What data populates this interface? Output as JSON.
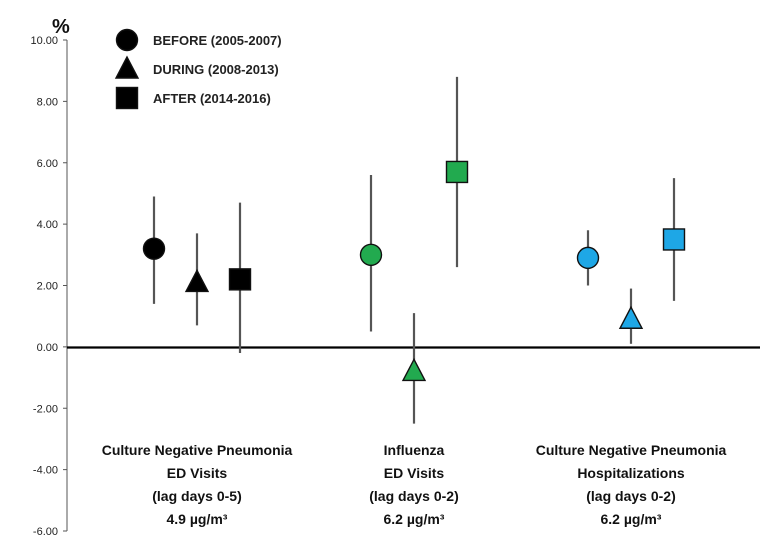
{
  "chart_data": {
    "type": "scatter",
    "title": "",
    "ylabel": "%",
    "xlabel": "",
    "ylim": [
      -6,
      10
    ],
    "yticks": [
      "10.00",
      "8.00",
      "6.00",
      "4.00",
      "2.00",
      "0.00",
      "-2.00",
      "-4.00",
      "-6.00"
    ],
    "yticks_values": [
      10,
      8,
      6,
      4,
      2,
      0,
      -2,
      -4,
      -6
    ],
    "legend": [
      {
        "name": "BEFORE (2005-2007)",
        "marker": "circle"
      },
      {
        "name": "DURING (2008-2013)",
        "marker": "triangle"
      },
      {
        "name": "AFTER (2014-2016)",
        "marker": "square"
      }
    ],
    "groups": [
      {
        "color": "#000000",
        "label_lines": [
          "Culture Negative Pneumonia",
          "ED Visits",
          "(lag days 0-5)",
          "4.9 µg/m³"
        ],
        "points": [
          {
            "period": "BEFORE (2005-2007)",
            "marker": "circle",
            "value": 3.2,
            "lower": 1.4,
            "upper": 4.9
          },
          {
            "period": "DURING (2008-2013)",
            "marker": "triangle",
            "value": 2.1,
            "lower": 0.7,
            "upper": 3.7
          },
          {
            "period": "AFTER (2014-2016)",
            "marker": "square",
            "value": 2.2,
            "lower": -0.2,
            "upper": 4.7
          }
        ]
      },
      {
        "color": "#22aa4f",
        "label_lines": [
          "Influenza",
          "ED Visits",
          "(lag days 0-2)",
          "6.2 µg/m³"
        ],
        "points": [
          {
            "period": "BEFORE (2005-2007)",
            "marker": "circle",
            "value": 3.0,
            "lower": 0.5,
            "upper": 5.6
          },
          {
            "period": "DURING (2008-2013)",
            "marker": "triangle",
            "value": -0.8,
            "lower": -2.5,
            "upper": 1.1
          },
          {
            "period": "AFTER (2014-2016)",
            "marker": "square",
            "value": 5.7,
            "lower": 2.6,
            "upper": 8.8
          }
        ]
      },
      {
        "color": "#1ea7e6",
        "label_lines": [
          "Culture Negative Pneumonia",
          "Hospitalizations",
          "(lag days 0-2)",
          "6.2 µg/m³"
        ],
        "points": [
          {
            "period": "BEFORE (2005-2007)",
            "marker": "circle",
            "value": 2.9,
            "lower": 2.0,
            "upper": 3.8
          },
          {
            "period": "DURING (2008-2013)",
            "marker": "triangle",
            "value": 0.9,
            "lower": 0.1,
            "upper": 1.9
          },
          {
            "period": "AFTER (2014-2016)",
            "marker": "square",
            "value": 3.5,
            "lower": 1.5,
            "upper": 5.5
          }
        ]
      }
    ]
  }
}
